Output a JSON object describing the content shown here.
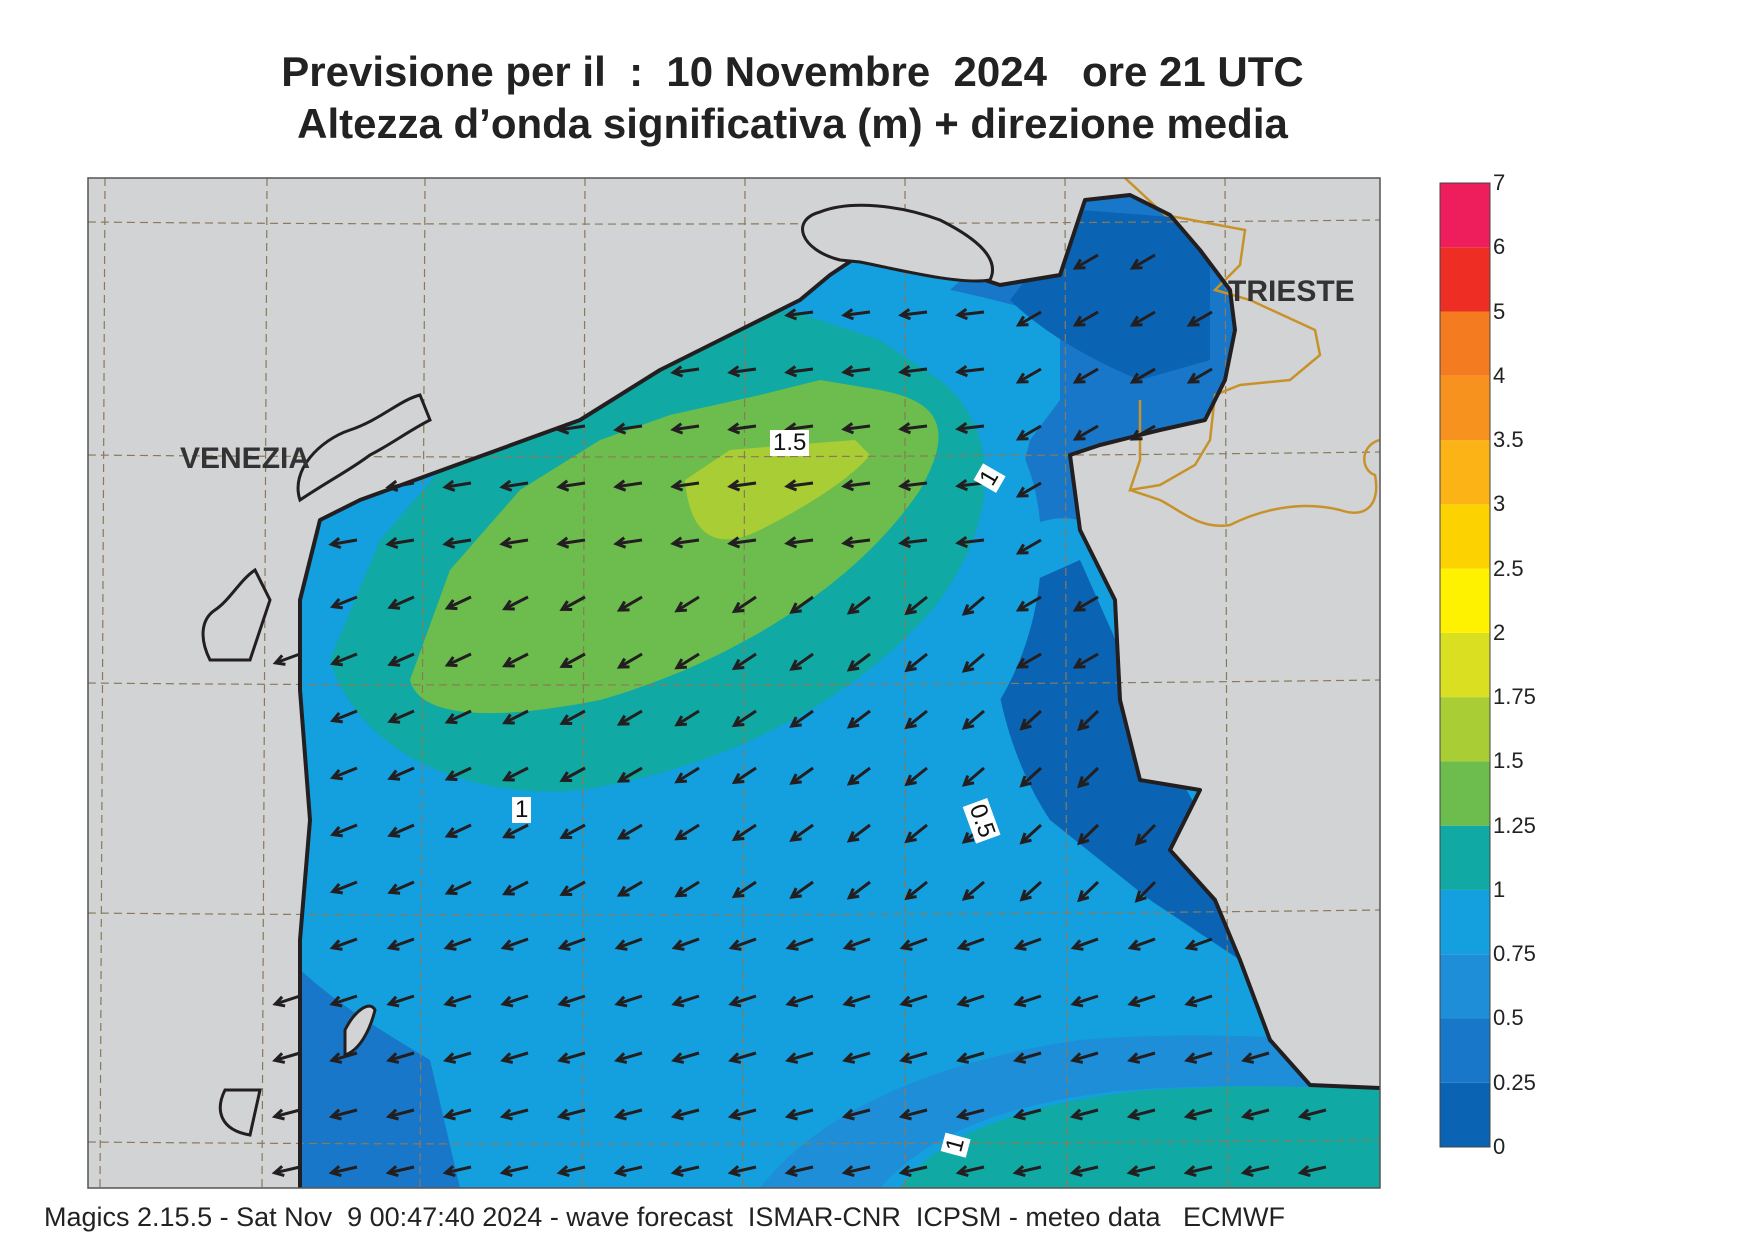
{
  "title": {
    "line1": "Previsione per il  :  10 Novembre  2024   ore 21 UTC",
    "line2": "Altezza d’onda significativa (m) + direzione media"
  },
  "footer": "Magics 2.15.5 - Sat Nov  9 00:47:40 2024 - wave forecast  ISMAR-CNR  ICPSM - meteo data   ECMWF",
  "places": {
    "venezia": "VENEZIA",
    "trieste": "TRIESTE"
  },
  "contour_labels": {
    "l1": "1.5",
    "l2": "1",
    "l3": "1",
    "l4": "0.5",
    "l5": "1"
  },
  "legend": {
    "labels": [
      "0",
      "0.25",
      "0.5",
      "0.75",
      "1",
      "1.25",
      "1.5",
      "1.75",
      "2",
      "2.5",
      "3",
      "3.5",
      "4",
      "5",
      "6",
      "7"
    ],
    "colors": [
      "#0b63b3",
      "#1877c8",
      "#1e8ed8",
      "#149fdf",
      "#10a9a3",
      "#6cbd4e",
      "#a9cd35",
      "#dae021",
      "#fff200",
      "#fcd300",
      "#fcb316",
      "#f8921e",
      "#f47b20",
      "#ee2e24",
      "#ee1d5c"
    ]
  },
  "colors": {
    "land": "#d1d3d4",
    "grid": "#8a7a5a",
    "border": "#c8922a",
    "arrow": "#231f20"
  }
}
